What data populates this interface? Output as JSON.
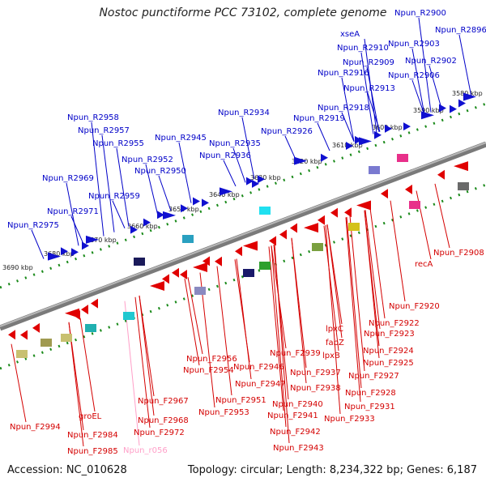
{
  "title": "Nostoc punctiforme PCC 73102, complete genome",
  "footer": {
    "accession": "Accession: NC_010628",
    "summary": "Topology: circular; Length: 8,234,322 bp; Genes: 6,187"
  },
  "colors": {
    "forward_gene": "#1010d0",
    "reverse_gene": "#e00000",
    "rna_gene": "#ff9fc8",
    "forward_label": "#0000c8",
    "reverse_label": "#d40000",
    "backbone": "#8a8a8a",
    "tick": "#1a8a1a"
  },
  "scale_ticks": [
    "3580 kbp",
    "3590 kbp",
    "3600 kbp",
    "3610 kbp",
    "3620 kbp",
    "3630 kbp",
    "3640 kbp",
    "3650 kbp",
    "3660 kbp",
    "3670 kbp",
    "3680 kbp",
    "3690 kbp"
  ],
  "forward_labels": [
    "Npun_R2900",
    "Npun_R2896",
    "xseA",
    "Npun_R2910",
    "Npun_R2903",
    "Npun_R2909",
    "Npun_R2902",
    "Npun_R2916",
    "Npun_R2906",
    "Npun_R2913",
    "Npun_R2918",
    "Npun_R2934",
    "Npun_R2919",
    "Npun_R2958",
    "Npun_R2926",
    "Npun_R2957",
    "Npun_R2945",
    "Npun_R2955",
    "Npun_R2935",
    "Npun_R2936",
    "Npun_R2952",
    "Npun_R2950",
    "Npun_R2969",
    "Npun_R2959",
    "Npun_R2971",
    "Npun_R2975"
  ],
  "reverse_labels": [
    "recA",
    "Npun_F2908",
    "Npun_F2920",
    "lpxC",
    "Npun_F2922",
    "fabZ",
    "Npun_F2923",
    "lpxB",
    "Npun_F2924",
    "Npun_F2939",
    "Npun_F2925",
    "Npun_F2937",
    "Npun_F2927",
    "Npun_F2956",
    "Npun_F2938",
    "Npun_F2946",
    "Npun_F2928",
    "Npun_F2954",
    "Npun_F2947",
    "Npun_F2931",
    "Npun_F2940",
    "Npun_F2951",
    "Npun_F2967",
    "Npun_F2953",
    "Npun_F2941",
    "Npun_F2933",
    "Npun_F2994",
    "groEL",
    "Npun_F2968",
    "Npun_F2942",
    "Npun_F2972",
    "Npun_F2984",
    "Npun_F2943",
    "Npun_F2985",
    "Npun_r056"
  ]
}
